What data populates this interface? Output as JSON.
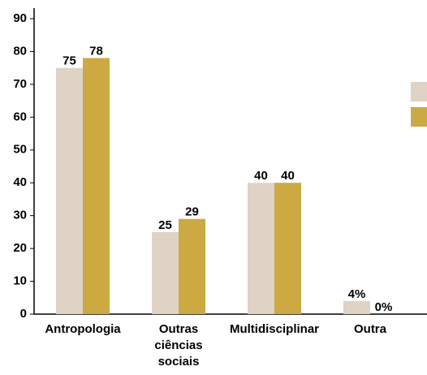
{
  "chart_data": {
    "type": "bar",
    "categories": [
      "Antropologia",
      "Outras ciências sociais",
      "Multidisciplinar",
      "Outra"
    ],
    "series": [
      {
        "color": "#ded3c4",
        "values": [
          75,
          25,
          40,
          4
        ],
        "value_labels": [
          "75",
          "25",
          "40",
          "4%"
        ]
      },
      {
        "color": "#cca942",
        "values": [
          78,
          29,
          40,
          0
        ],
        "value_labels": [
          "78",
          "29",
          "40",
          "0%"
        ]
      }
    ],
    "ylim": [
      0,
      90
    ],
    "yticks": [
      0,
      10,
      20,
      30,
      40,
      50,
      60,
      70,
      80,
      90
    ],
    "grid": false,
    "legend": "right"
  }
}
